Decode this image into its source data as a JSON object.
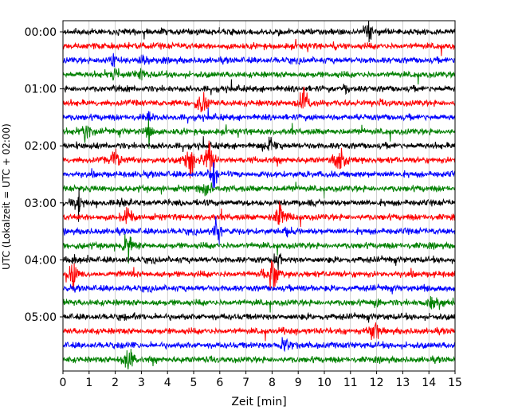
{
  "chart_data": {
    "type": "line",
    "title": "",
    "xlabel": "Zeit  [min]",
    "ylabel": "UTC (Lokalzeit = UTC + 02:00)",
    "xlim": [
      0,
      15
    ],
    "x_ticks": [
      "0",
      "1",
      "2",
      "3",
      "4",
      "5",
      "6",
      "7",
      "8",
      "9",
      "10",
      "11",
      "12",
      "13",
      "14",
      "15"
    ],
    "y_ticks": [
      "00:00",
      "01:00",
      "02:00",
      "03:00",
      "04:00",
      "05:00"
    ],
    "grid": true,
    "legend": "none",
    "trace_interval_minutes": 15,
    "trace_colors": [
      "#000000",
      "#ff0000",
      "#0000ff",
      "#008000"
    ],
    "traces": [
      {
        "start": "00:00",
        "events": [
          [
            11.7,
            1.4
          ]
        ]
      },
      {
        "start": "00:15",
        "events": [
          [
            10.4,
            0.6
          ],
          [
            3.0,
            0.5
          ]
        ]
      },
      {
        "start": "00:30",
        "events": [
          [
            1.9,
            1.2
          ],
          [
            3.1,
            1.0
          ]
        ]
      },
      {
        "start": "00:45",
        "events": [
          [
            2.0,
            1.6
          ],
          [
            3.0,
            1.2
          ]
        ]
      },
      {
        "start": "01:00",
        "events": [
          [
            2.1,
            0.6
          ],
          [
            10.8,
            0.6
          ]
        ]
      },
      {
        "start": "01:15",
        "events": [
          [
            5.3,
            2.2
          ],
          [
            9.2,
            2.6
          ]
        ]
      },
      {
        "start": "01:30",
        "events": [
          [
            3.3,
            0.7
          ]
        ]
      },
      {
        "start": "01:45",
        "events": [
          [
            0.9,
            1.8
          ],
          [
            3.3,
            2.0
          ]
        ]
      },
      {
        "start": "02:00",
        "events": [
          [
            7.9,
            1.6
          ],
          [
            0.5,
            0.5
          ]
        ]
      },
      {
        "start": "02:15",
        "events": [
          [
            2.0,
            1.8
          ],
          [
            4.9,
            2.4
          ],
          [
            5.6,
            2.6
          ],
          [
            10.6,
            2.4
          ]
        ]
      },
      {
        "start": "02:30",
        "events": [
          [
            5.8,
            1.8
          ]
        ]
      },
      {
        "start": "02:45",
        "events": [
          [
            5.5,
            1.8
          ],
          [
            1.0,
            0.5
          ]
        ]
      },
      {
        "start": "03:00",
        "events": [
          [
            0.6,
            1.6
          ],
          [
            2.4,
            0.6
          ]
        ]
      },
      {
        "start": "03:15",
        "events": [
          [
            8.3,
            2.4
          ],
          [
            2.5,
            1.4
          ]
        ]
      },
      {
        "start": "03:30",
        "events": [
          [
            5.9,
            2.2
          ],
          [
            8.6,
            0.8
          ]
        ]
      },
      {
        "start": "03:45",
        "events": [
          [
            2.5,
            1.8
          ],
          [
            0.6,
            0.5
          ]
        ]
      },
      {
        "start": "04:00",
        "events": [
          [
            8.2,
            1.2
          ],
          [
            0.4,
            0.6
          ]
        ]
      },
      {
        "start": "04:15",
        "events": [
          [
            0.4,
            2.0
          ],
          [
            8.0,
            2.6
          ]
        ]
      },
      {
        "start": "04:30",
        "events": [
          [
            14.0,
            0.8
          ],
          [
            9.5,
            0.5
          ]
        ]
      },
      {
        "start": "04:45",
        "events": [
          [
            14.1,
            1.4
          ],
          [
            12.0,
            0.6
          ]
        ]
      },
      {
        "start": "05:00",
        "events": [
          [
            2.8,
            0.6
          ]
        ]
      },
      {
        "start": "05:15",
        "events": [
          [
            11.9,
            2.0
          ],
          [
            8.5,
            0.5
          ]
        ]
      },
      {
        "start": "05:30",
        "events": [
          [
            8.5,
            2.0
          ],
          [
            2.4,
            0.5
          ]
        ]
      },
      {
        "start": "05:45",
        "events": [
          [
            2.5,
            2.0
          ]
        ]
      }
    ]
  }
}
